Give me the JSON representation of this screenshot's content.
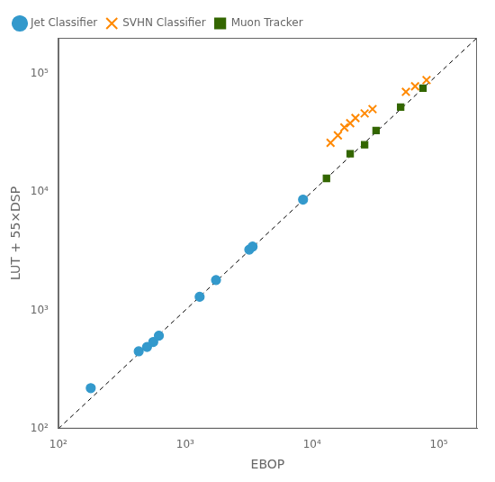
{
  "chart_data": {
    "type": "scatter",
    "x_label": "EBOP",
    "y_label": "LUT + 55×DSP",
    "log": true,
    "grid": false,
    "legend": "upper left",
    "xlim": [
      100,
      200000
    ],
    "ylim": [
      100,
      200000
    ],
    "xticks": [
      {
        "value": 100,
        "label": "10²"
      },
      {
        "value": 1000,
        "label": "10³"
      },
      {
        "value": 10000,
        "label": "10⁴"
      },
      {
        "value": 100000,
        "label": "10⁵"
      }
    ],
    "yticks": [
      {
        "value": 100,
        "label": "10²"
      },
      {
        "value": 1000,
        "label": "10³"
      },
      {
        "value": 10000,
        "label": "10⁴"
      },
      {
        "value": 100000,
        "label": "10⁵"
      }
    ],
    "series": [
      {
        "type": "line",
        "color": "#000000",
        "line_style": "dashed",
        "x": [
          100,
          200000
        ],
        "values": [
          100,
          200000
        ]
      },
      {
        "name": "Jet Classifier",
        "color": "#3399cc",
        "marker": "circle",
        "x": [
          180,
          430,
          500,
          560,
          620,
          1300,
          1750,
          3200,
          3400,
          8500
        ],
        "values": [
          220,
          450,
          490,
          540,
          610,
          1300,
          1800,
          3250,
          3450,
          8600
        ]
      },
      {
        "name": "SVHN Classifier",
        "color": "#ff8800",
        "marker": "x",
        "x": [
          14000,
          16000,
          18000,
          20000,
          22000,
          26000,
          30000,
          55000,
          65000,
          80000
        ],
        "values": [
          26000,
          30000,
          35000,
          38000,
          42000,
          46000,
          50000,
          70000,
          78000,
          88000
        ]
      },
      {
        "name": "Muon Tracker",
        "color": "#336600",
        "marker": "square",
        "x": [
          13000,
          20000,
          26000,
          32000,
          50000,
          75000
        ],
        "values": [
          13000,
          21000,
          25000,
          33000,
          52000,
          75000
        ]
      }
    ]
  }
}
